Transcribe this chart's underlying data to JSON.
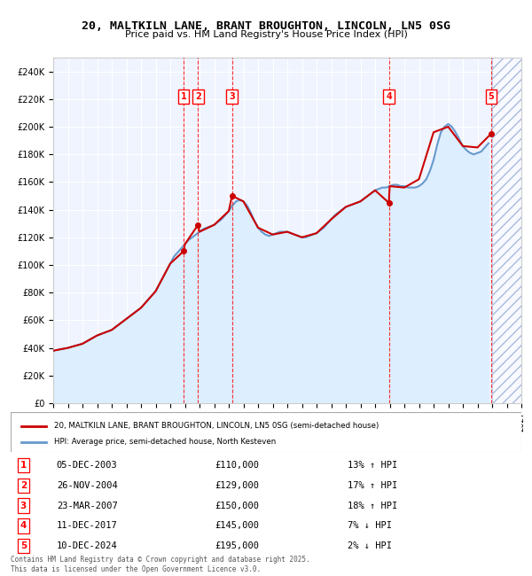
{
  "title_line1": "20, MALTKILN LANE, BRANT BROUGHTON, LINCOLN, LN5 0SG",
  "title_line2": "Price paid vs. HM Land Registry's House Price Index (HPI)",
  "ylabel": "",
  "xlabel": "",
  "ylim": [
    0,
    250000
  ],
  "yticks": [
    0,
    20000,
    40000,
    60000,
    80000,
    100000,
    120000,
    140000,
    160000,
    180000,
    200000,
    220000,
    240000
  ],
  "ytick_labels": [
    "£0",
    "£20K",
    "£40K",
    "£60K",
    "£80K",
    "£100K",
    "£120K",
    "£140K",
    "£160K",
    "£180K",
    "£200K",
    "£220K",
    "£240K"
  ],
  "xlim_start": 1995.0,
  "xlim_end": 2027.0,
  "sale_color": "#cc0000",
  "hpi_color": "#6699cc",
  "hpi_fill_color": "#ddeeff",
  "background_color": "#f0f4ff",
  "grid_color": "#ffffff",
  "sale_dates": [
    2003.92,
    2004.9,
    2007.22,
    2017.94,
    2024.94
  ],
  "sale_prices": [
    110000,
    129000,
    150000,
    145000,
    195000
  ],
  "sale_labels": [
    "1",
    "2",
    "3",
    "4",
    "5"
  ],
  "sale_dates_str": [
    "05-DEC-2003",
    "26-NOV-2004",
    "23-MAR-2007",
    "11-DEC-2017",
    "10-DEC-2024"
  ],
  "sale_hpi_pct": [
    "13% ↑ HPI",
    "17% ↑ HPI",
    "18% ↑ HPI",
    "7% ↓ HPI",
    "2% ↓ HPI"
  ],
  "legend_label1": "20, MALTKILN LANE, BRANT BROUGHTON, LINCOLN, LN5 0SG (semi-detached house)",
  "legend_label2": "HPI: Average price, semi-detached house, North Kesteven",
  "footnote": "Contains HM Land Registry data © Crown copyright and database right 2025.\nThis data is licensed under the Open Government Licence v3.0.",
  "hpi_years": [
    1995,
    1995.25,
    1995.5,
    1995.75,
    1996,
    1996.25,
    1996.5,
    1996.75,
    1997,
    1997.25,
    1997.5,
    1997.75,
    1998,
    1998.25,
    1998.5,
    1998.75,
    1999,
    1999.25,
    1999.5,
    1999.75,
    2000,
    2000.25,
    2000.5,
    2000.75,
    2001,
    2001.25,
    2001.5,
    2001.75,
    2002,
    2002.25,
    2002.5,
    2002.75,
    2003,
    2003.25,
    2003.5,
    2003.75,
    2004,
    2004.25,
    2004.5,
    2004.75,
    2005,
    2005.25,
    2005.5,
    2005.75,
    2006,
    2006.25,
    2006.5,
    2006.75,
    2007,
    2007.25,
    2007.5,
    2007.75,
    2008,
    2008.25,
    2008.5,
    2008.75,
    2009,
    2009.25,
    2009.5,
    2009.75,
    2010,
    2010.25,
    2010.5,
    2010.75,
    2011,
    2011.25,
    2011.5,
    2011.75,
    2012,
    2012.25,
    2012.5,
    2012.75,
    2013,
    2013.25,
    2013.5,
    2013.75,
    2014,
    2014.25,
    2014.5,
    2014.75,
    2015,
    2015.25,
    2015.5,
    2015.75,
    2016,
    2016.25,
    2016.5,
    2016.75,
    2017,
    2017.25,
    2017.5,
    2017.75,
    2018,
    2018.25,
    2018.5,
    2018.75,
    2019,
    2019.25,
    2019.5,
    2019.75,
    2020,
    2020.25,
    2020.5,
    2020.75,
    2021,
    2021.25,
    2021.5,
    2021.75,
    2022,
    2022.25,
    2022.5,
    2022.75,
    2023,
    2023.25,
    2023.5,
    2023.75,
    2024,
    2024.25,
    2024.5,
    2024.75
  ],
  "hpi_values": [
    38000,
    38500,
    39000,
    39500,
    40000,
    40800,
    41500,
    42200,
    43000,
    44500,
    46000,
    47500,
    49000,
    50000,
    51000,
    52000,
    53000,
    55000,
    57000,
    59000,
    61000,
    63000,
    65000,
    67000,
    69000,
    72000,
    75000,
    78000,
    81000,
    86000,
    91000,
    96000,
    101000,
    106000,
    109000,
    112000,
    115000,
    118000,
    120000,
    122000,
    124000,
    126000,
    127000,
    128000,
    129000,
    131000,
    133000,
    136000,
    139000,
    143000,
    146000,
    147000,
    146000,
    143000,
    138000,
    132000,
    127000,
    124000,
    122000,
    121000,
    122000,
    123000,
    124000,
    124000,
    124000,
    123000,
    122000,
    121000,
    120000,
    120000,
    121000,
    122000,
    123000,
    125000,
    127000,
    130000,
    133000,
    136000,
    138000,
    140000,
    142000,
    143000,
    144000,
    145000,
    146000,
    148000,
    150000,
    152000,
    154000,
    155000,
    156000,
    156000,
    157000,
    158000,
    158000,
    157000,
    157000,
    156000,
    156000,
    156000,
    157000,
    159000,
    162000,
    168000,
    176000,
    187000,
    196000,
    200000,
    202000,
    200000,
    196000,
    191000,
    186000,
    183000,
    181000,
    180000,
    181000,
    182000,
    185000,
    188000
  ],
  "sold_line_years": [
    1995,
    1996,
    1997,
    1998,
    1999,
    2000,
    2001,
    2002,
    2003,
    2003.92,
    2004,
    2004.9,
    2005,
    2006,
    2007,
    2007.22,
    2008,
    2009,
    2010,
    2011,
    2012,
    2013,
    2014,
    2015,
    2016,
    2017,
    2017.94,
    2018,
    2019,
    2020,
    2021,
    2022,
    2023,
    2024,
    2024.94
  ],
  "sold_line_values": [
    38000,
    40000,
    43000,
    49000,
    53000,
    61000,
    69000,
    81000,
    101000,
    110000,
    115000,
    129000,
    124000,
    129000,
    139000,
    150000,
    146000,
    127000,
    122000,
    124000,
    120000,
    123000,
    133000,
    142000,
    146000,
    154000,
    145000,
    157000,
    156000,
    162000,
    196000,
    200000,
    186000,
    185000,
    195000
  ]
}
